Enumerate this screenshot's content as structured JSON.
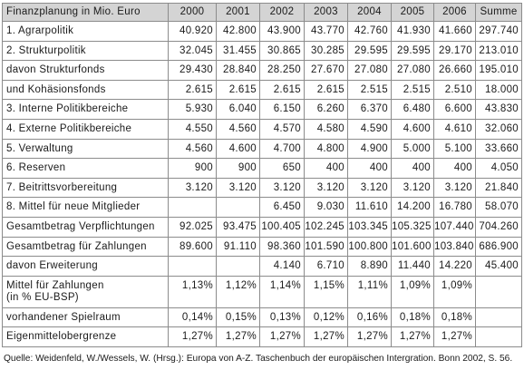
{
  "table": {
    "title": "Finanzplanung in Mio. Euro",
    "columns": [
      "2000",
      "2001",
      "2002",
      "2003",
      "2004",
      "2005",
      "2006",
      "Summe"
    ],
    "rows": [
      {
        "label": "1. Agrarpolitik",
        "cells": [
          "40.920",
          "42.800",
          "43.900",
          "43.770",
          "42.760",
          "41.930",
          "41.660",
          "297.740"
        ]
      },
      {
        "label": "2. Strukturpolitik",
        "cells": [
          "32.045",
          "31.455",
          "30.865",
          "30.285",
          "29.595",
          "29.595",
          "29.170",
          "213.010"
        ]
      },
      {
        "label": "davon Strukturfonds",
        "cells": [
          "29.430",
          "28.840",
          "28.250",
          "27.670",
          "27.080",
          "27.080",
          "26.660",
          "195.010"
        ]
      },
      {
        "label": "und Kohäsionsfonds",
        "cells": [
          "2.615",
          "2.615",
          "2.615",
          "2.615",
          "2.515",
          "2.515",
          "2.510",
          "18.000"
        ]
      },
      {
        "label": "3. Interne Politikbereiche",
        "cells": [
          "5.930",
          "6.040",
          "6.150",
          "6.260",
          "6.370",
          "6.480",
          "6.600",
          "43.830"
        ]
      },
      {
        "label": "4. Externe Politikbereiche",
        "cells": [
          "4.550",
          "4.560",
          "4.570",
          "4.580",
          "4.590",
          "4.600",
          "4.610",
          "32.060"
        ]
      },
      {
        "label": "5. Verwaltung",
        "cells": [
          "4.560",
          "4.600",
          "4.700",
          "4.800",
          "4.900",
          "5.000",
          "5.100",
          "33.660"
        ]
      },
      {
        "label": "6. Reserven",
        "cells": [
          "900",
          "900",
          "650",
          "400",
          "400",
          "400",
          "400",
          "4.050"
        ]
      },
      {
        "label": "7. Beitrittsvorbereitung",
        "cells": [
          "3.120",
          "3.120",
          "3.120",
          "3.120",
          "3.120",
          "3.120",
          "3.120",
          "21.840"
        ]
      },
      {
        "label": "8. Mittel für neue Mitglieder",
        "cells": [
          null,
          null,
          "6.450",
          "9.030",
          "11.610",
          "14.200",
          "16.780",
          "58.070"
        ]
      },
      {
        "label": "Gesamtbetrag Verpflichtungen",
        "cells": [
          "92.025",
          "93.475",
          "100.405",
          "102.245",
          "103.345",
          "105.325",
          "107.440",
          "704.260"
        ]
      },
      {
        "label": "Gesamtbetrag für Zahlungen",
        "cells": [
          "89.600",
          "91.110",
          "98.360",
          "101.590",
          "100.800",
          "101.600",
          "103.840",
          "686.900"
        ]
      },
      {
        "label": "davon Erweiterung",
        "cells": [
          null,
          null,
          "4.140",
          "6.710",
          "8.890",
          "11.440",
          "14.220",
          "45.400"
        ]
      },
      {
        "label": "Mittel für Zahlungen",
        "label_2": "(in % EU-BSP)",
        "cells": [
          "1,13%",
          "1,12%",
          "1,14%",
          "1,15%",
          "1,11%",
          "1,09%",
          "1,09%",
          null
        ]
      },
      {
        "label": "vorhandener Spielraum",
        "cells": [
          "0,14%",
          "0,15%",
          "0,13%",
          "0,12%",
          "0,16%",
          "0,18%",
          "0,18%",
          null
        ]
      },
      {
        "label": "Eigenmittelobergrenze",
        "cells": [
          "1,27%",
          "1,27%",
          "1,27%",
          "1,27%",
          "1,27%",
          "1,27%",
          "1,27%",
          null
        ]
      }
    ]
  },
  "source": "Quelle: Weidenfeld, W./Wessels, W. (Hrsg.): Europa von A-Z. Taschenbuch der europäischen Intergration. Bonn 2002, S. 56.",
  "colors": {
    "header_bg": "#d4d4d4",
    "grid_line": "#8c8c8c",
    "text": "#1a1a1a"
  }
}
